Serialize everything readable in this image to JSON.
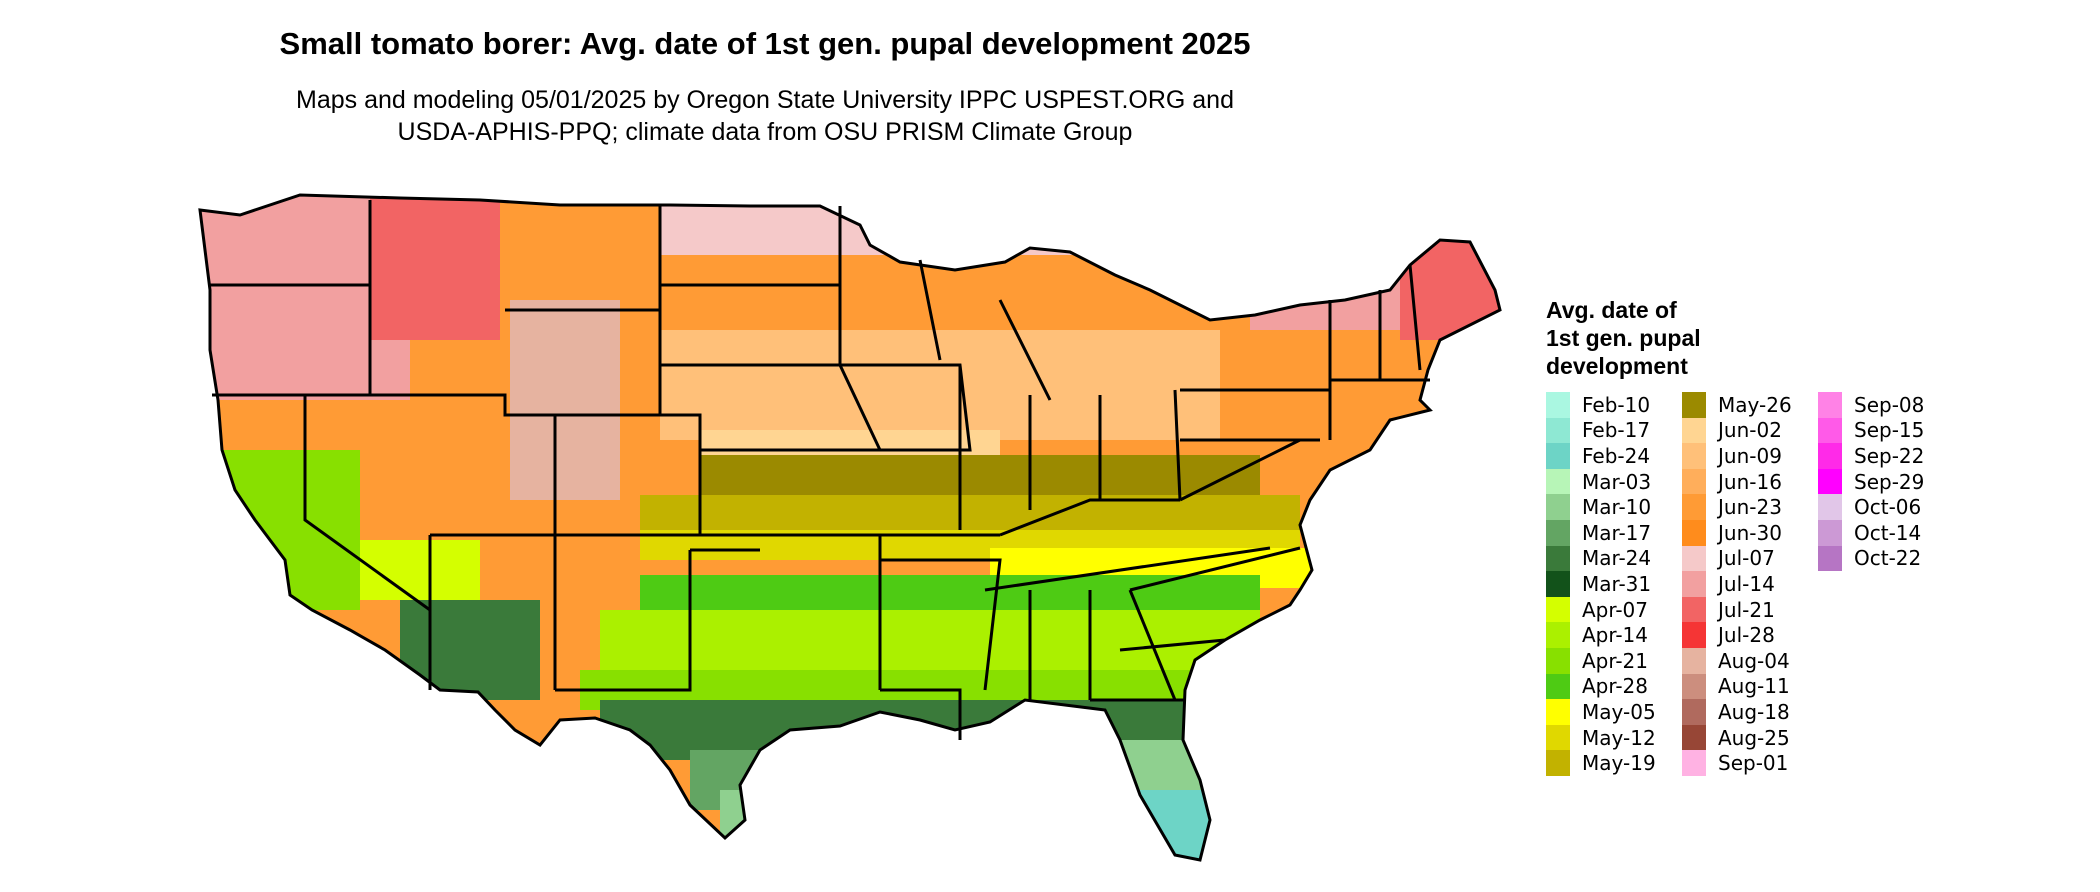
{
  "title": "Small tomato borer: Avg. date of 1st gen. pupal development 2025",
  "subtitle_line1": "Maps and modeling 05/01/2025 by Oregon State University IPPC USPEST.ORG and",
  "subtitle_line2": "USDA-APHIS-PPQ; climate data from OSU PRISM Climate Group",
  "legend": {
    "title_line1": "Avg. date of",
    "title_line2": "1st gen. pupal",
    "title_line3": "development",
    "items": [
      {
        "label": "Feb-10",
        "color": "#aaf7e1"
      },
      {
        "label": "Feb-17",
        "color": "#8ee8d3"
      },
      {
        "label": "Feb-24",
        "color": "#6dd4c6"
      },
      {
        "label": "Mar-03",
        "color": "#b7f5b7"
      },
      {
        "label": "Mar-10",
        "color": "#8fd08f"
      },
      {
        "label": "Mar-17",
        "color": "#63a563"
      },
      {
        "label": "Mar-24",
        "color": "#3a7a3a"
      },
      {
        "label": "Mar-31",
        "color": "#12521a"
      },
      {
        "label": "Apr-07",
        "color": "#d4ff00"
      },
      {
        "label": "Apr-14",
        "color": "#abf000"
      },
      {
        "label": "Apr-21",
        "color": "#88e000"
      },
      {
        "label": "Apr-28",
        "color": "#4ecb14"
      },
      {
        "label": "May-05",
        "color": "#ffff00"
      },
      {
        "label": "May-12",
        "color": "#e0d800"
      },
      {
        "label": "May-19",
        "color": "#c2b200"
      },
      {
        "label": "May-26",
        "color": "#9b8a00"
      },
      {
        "label": "Jun-02",
        "color": "#ffd592"
      },
      {
        "label": "Jun-09",
        "color": "#ffc079"
      },
      {
        "label": "Jun-16",
        "color": "#ffae5b"
      },
      {
        "label": "Jun-23",
        "color": "#ff9b35"
      },
      {
        "label": "Jun-30",
        "color": "#ff8c1c"
      },
      {
        "label": "Jul-07",
        "color": "#f5c9c9"
      },
      {
        "label": "Jul-14",
        "color": "#f2a0a0"
      },
      {
        "label": "Jul-21",
        "color": "#f26464"
      },
      {
        "label": "Jul-28",
        "color": "#f53535"
      },
      {
        "label": "Aug-04",
        "color": "#e6b3a0"
      },
      {
        "label": "Aug-11",
        "color": "#cc8e7e"
      },
      {
        "label": "Aug-18",
        "color": "#b06a5e"
      },
      {
        "label": "Aug-25",
        "color": "#974636"
      },
      {
        "label": "Sep-01",
        "color": "#ffb2e3"
      },
      {
        "label": "Sep-08",
        "color": "#ff82e6"
      },
      {
        "label": "Sep-15",
        "color": "#ff5ae8"
      },
      {
        "label": "Sep-22",
        "color": "#ff2ae8"
      },
      {
        "label": "Sep-29",
        "color": "#ff00ff"
      },
      {
        "label": "Oct-06",
        "color": "#e1c6e8"
      },
      {
        "label": "Oct-14",
        "color": "#cc99d5"
      },
      {
        "label": "Oct-22",
        "color": "#b675c4"
      }
    ]
  }
}
